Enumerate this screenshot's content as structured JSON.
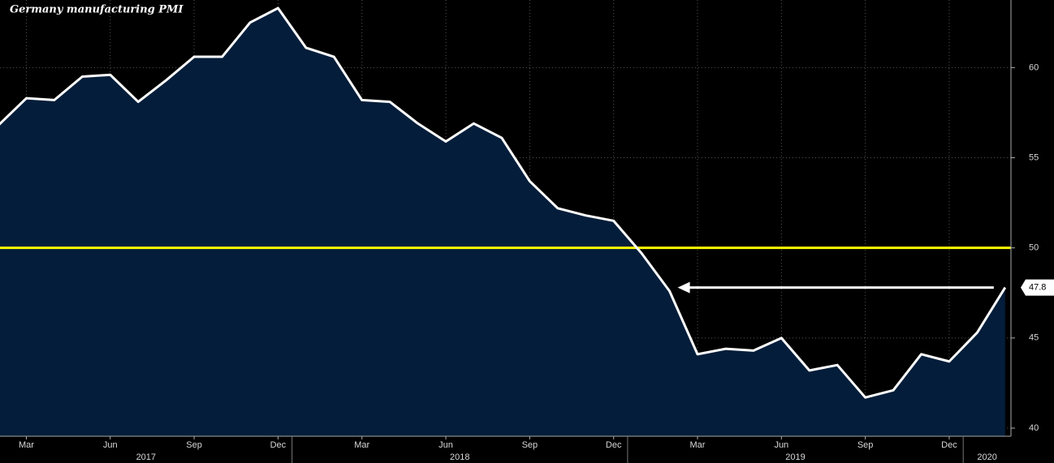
{
  "chart_data": {
    "type": "area",
    "title": "Germany manufacturing PMI",
    "categories": [
      null,
      "Mar",
      null,
      null,
      "Jun",
      null,
      null,
      "Sep",
      null,
      null,
      "Dec",
      null,
      null,
      "Mar",
      null,
      null,
      "Jun",
      null,
      null,
      "Sep",
      null,
      null,
      "Dec",
      null,
      null,
      "Mar",
      null,
      null,
      "Jun",
      null,
      null,
      "Sep",
      null,
      null,
      "Dec",
      null,
      null
    ],
    "years": [
      "2017",
      "2018",
      "2019",
      "2020"
    ],
    "series": [
      {
        "name": "Germany manufacturing PMI",
        "color": "#ffffff",
        "fill": "#031d3a",
        "values": [
          56.8,
          58.3,
          58.2,
          59.5,
          59.6,
          58.1,
          59.3,
          60.6,
          60.6,
          62.5,
          63.3,
          61.1,
          60.6,
          58.2,
          58.1,
          56.9,
          55.9,
          56.9,
          56.1,
          53.7,
          52.2,
          51.8,
          51.5,
          49.7,
          47.6,
          44.1,
          44.4,
          44.3,
          45.0,
          43.2,
          43.5,
          41.7,
          42.1,
          44.1,
          43.7,
          45.3,
          47.8
        ]
      }
    ],
    "reference_line": {
      "value": 50,
      "color": "#ffff00"
    },
    "ylim": [
      39.55,
      63.75
    ],
    "yticks": [
      40,
      45,
      50,
      55,
      60
    ],
    "grid": true
  }
}
